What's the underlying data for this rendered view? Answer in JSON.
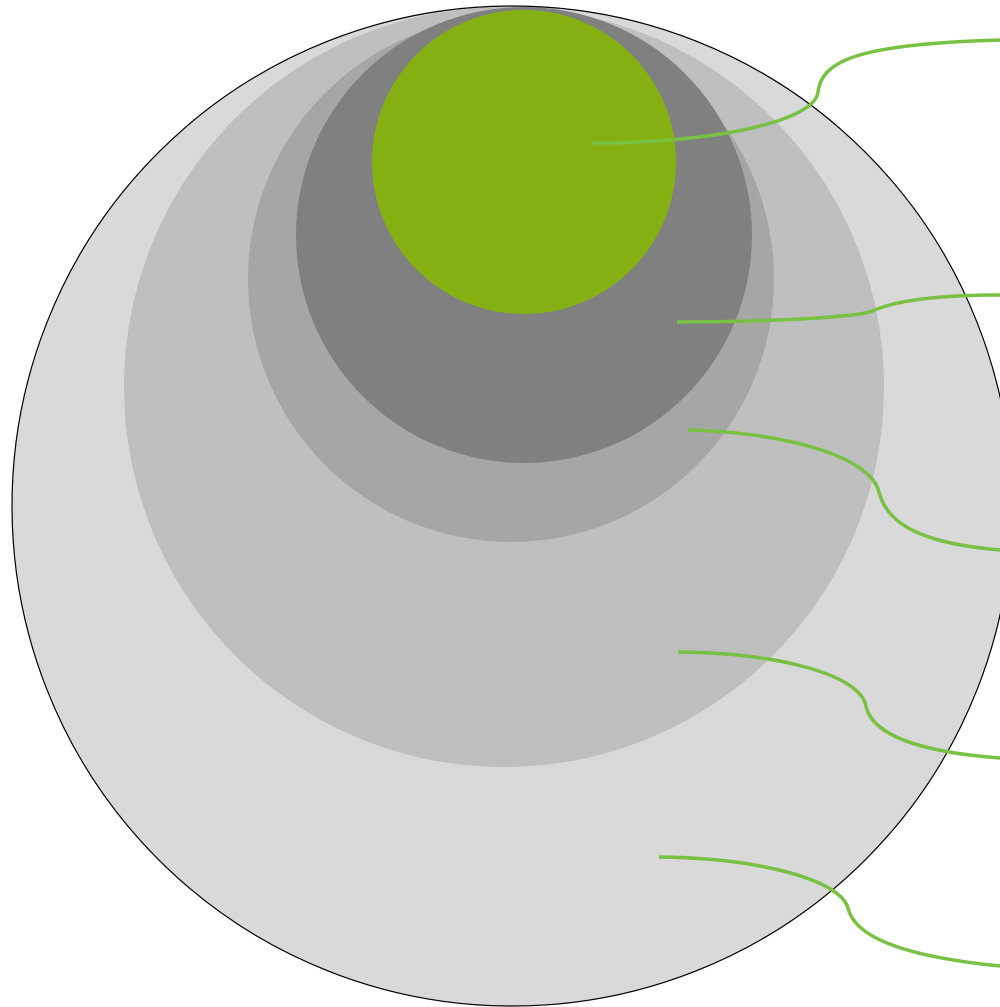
{
  "diagram": {
    "type": "nested-circles",
    "layers": [
      {
        "id": "layer-1-outer",
        "fill": "#d9d9d9",
        "stroke": "#000000"
      },
      {
        "id": "layer-2",
        "fill": "#bfbfbf"
      },
      {
        "id": "layer-3",
        "fill": "#a6a6a6"
      },
      {
        "id": "layer-4",
        "fill": "#808080"
      },
      {
        "id": "layer-5-core",
        "fill": "#84b111"
      }
    ],
    "callout_color": "#79c143",
    "callout_count": 5,
    "labels": []
  }
}
